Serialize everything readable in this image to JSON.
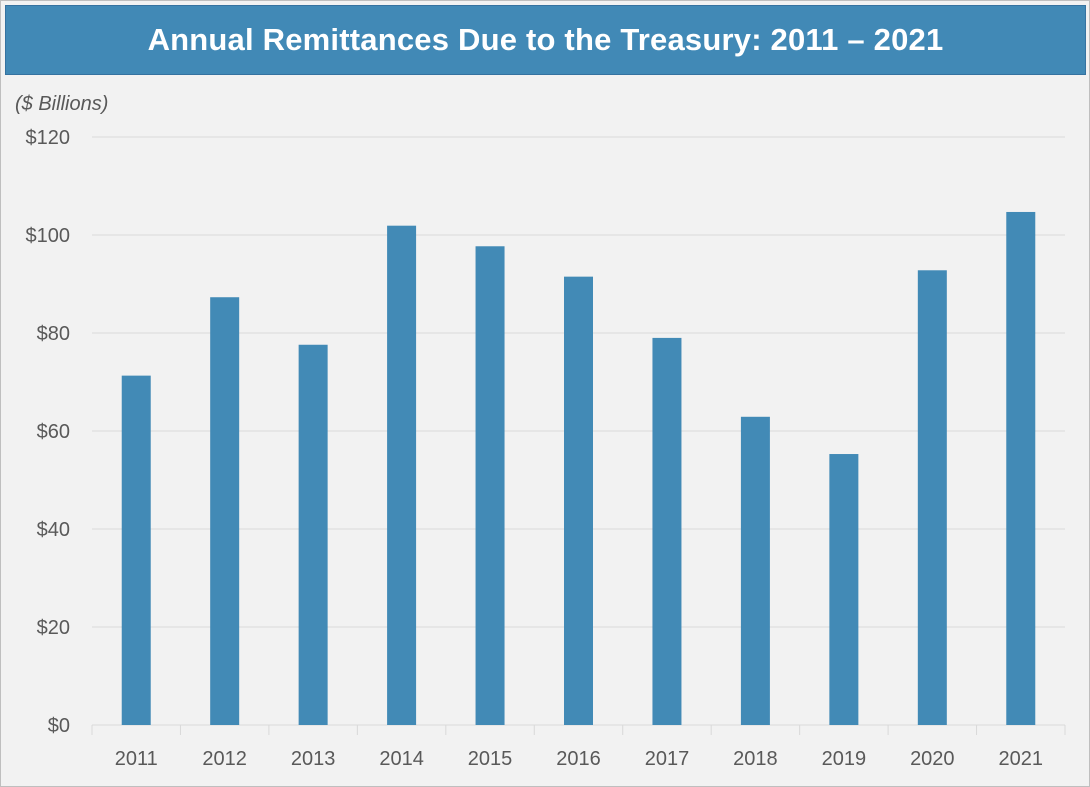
{
  "chart_data": {
    "type": "bar",
    "title": "Annual Remittances Due to the Treasury: 2011 – 2021",
    "unit_label": "($ Billions)",
    "categories": [
      "2011",
      "2012",
      "2013",
      "2014",
      "2015",
      "2016",
      "2017",
      "2018",
      "2019",
      "2020",
      "2021"
    ],
    "values": [
      71.3,
      87.3,
      77.6,
      101.9,
      97.7,
      91.5,
      79.0,
      62.9,
      55.3,
      92.8,
      104.7
    ],
    "y_tick_labels": [
      "$0",
      "$20",
      "$40",
      "$60",
      "$80",
      "$100",
      "$120"
    ],
    "y_ticks": [
      0,
      20,
      40,
      60,
      80,
      100,
      120
    ],
    "ylim": [
      0,
      120
    ],
    "grid": true,
    "legend": "none",
    "colors": {
      "bar": "#428ab6",
      "title_bg": "#4189b6",
      "grid": "#d9d9d9",
      "background": "#f2f2f2"
    }
  }
}
